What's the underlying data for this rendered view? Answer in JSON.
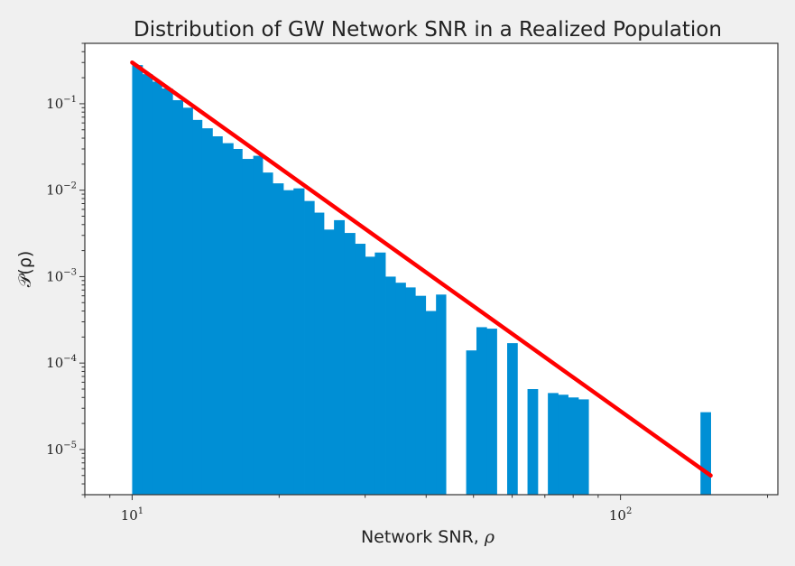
{
  "chart_data": {
    "type": "bar",
    "title": "Distribution of GW Network SNR in a Realized Population",
    "xlabel_text": "Network SNR,",
    "xlabel_symbol": "ρ",
    "ylabel": "𝒫(ρ)",
    "x_scale": "log",
    "y_scale": "log",
    "xlim": [
      8.0,
      210.0
    ],
    "ylim": [
      3e-06,
      0.5
    ],
    "x_ticks": [
      {
        "value": 10,
        "base": "10",
        "exp": "1"
      },
      {
        "value": 100,
        "base": "10",
        "exp": "2"
      }
    ],
    "y_ticks": [
      {
        "value": 0.1,
        "base": "10",
        "exp": "−1"
      },
      {
        "value": 0.01,
        "base": "10",
        "exp": "−2"
      },
      {
        "value": 0.001,
        "base": "10",
        "exp": "−3"
      },
      {
        "value": 0.0001,
        "base": "10",
        "exp": "−4"
      },
      {
        "value": 1e-05,
        "base": "10",
        "exp": "−5"
      }
    ],
    "grid": false,
    "legend": "none",
    "bar_color": "#008fd5",
    "line_color": "#ff0000",
    "histogram": {
      "bin_edges": [
        10.0,
        10.5,
        11.0,
        11.5,
        12.1,
        12.7,
        13.3,
        13.9,
        14.6,
        15.3,
        16.1,
        16.8,
        17.7,
        18.5,
        19.4,
        20.4,
        21.4,
        22.5,
        23.6,
        24.7,
        25.9,
        27.2,
        28.6,
        30.0,
        31.4,
        33.0,
        34.6,
        36.3,
        38.0,
        39.9,
        41.9,
        43.9,
        46.1,
        48.3,
        50.7,
        53.2,
        55.8,
        58.6,
        61.5,
        64.5,
        67.7,
        71.0,
        74.5,
        78.1,
        82.0,
        86.0,
        90.2,
        94.7,
        99.3,
        104.2,
        109.3,
        114.7,
        120.3,
        126.3,
        132.5,
        139.0,
        145.8,
        153.0
      ],
      "values": [
        0.28,
        0.22,
        0.18,
        0.15,
        0.11,
        0.09,
        0.065,
        0.052,
        0.042,
        0.035,
        0.03,
        0.023,
        0.025,
        0.016,
        0.012,
        0.01,
        0.0105,
        0.0075,
        0.0055,
        0.0035,
        0.0045,
        0.0032,
        0.0024,
        0.0017,
        0.0019,
        0.001,
        0.00085,
        0.00075,
        0.0006,
        0.0004,
        0.00062,
        0,
        0,
        0.00014,
        0.00026,
        0.00025,
        0,
        0.00017,
        0,
        5e-05,
        0,
        4.5e-05,
        4.3e-05,
        4e-05,
        3.8e-05,
        0,
        0,
        0,
        0,
        0,
        0,
        0,
        0,
        0,
        0,
        0,
        2.7e-05
      ]
    },
    "fit_line": {
      "x": [
        10.0,
        153.0
      ],
      "y": [
        0.3,
        5e-06
      ]
    }
  }
}
